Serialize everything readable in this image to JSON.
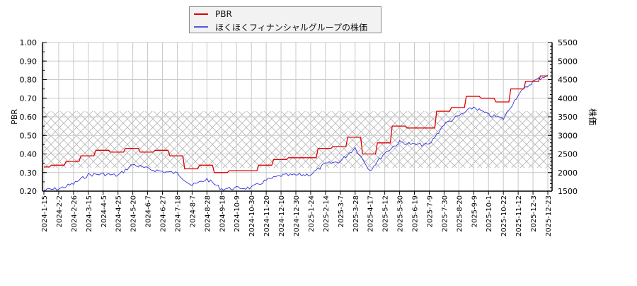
{
  "colors": {
    "pbr": "#dd0000",
    "price": "#3333dd",
    "grid": "#c8c8c8",
    "hatch": "#b4b4b4"
  },
  "legend": {
    "items": [
      {
        "label": "PBR",
        "color": "#dd0000"
      },
      {
        "label": "ほくほくフィナンシャルグループの株価",
        "color": "#5555ee"
      }
    ]
  },
  "axes": {
    "left_label": "PBR",
    "right_label": "株価",
    "left_ticks": [
      "1.00",
      "0.90",
      "0.80",
      "0.70",
      "0.60",
      "0.50",
      "0.40",
      "0.30",
      "0.20"
    ],
    "right_ticks": [
      "5500",
      "5000",
      "4500",
      "4000",
      "3500",
      "3000",
      "2500",
      "2000",
      "1500"
    ],
    "x_ticks": [
      "2024-1-15",
      "2024-2-2",
      "2024-2-26",
      "2024-3-15",
      "2024-4-5",
      "2024-4-25",
      "2024-5-20",
      "2024-6-7",
      "2024-6-27",
      "2024-7-18",
      "2024-8-7",
      "2024-8-28",
      "2024-9-18",
      "2024-10-9",
      "2024-10-30",
      "2024-11-20",
      "2024-12-10",
      "2024-12-30",
      "2025-1-24",
      "2025-2-14",
      "2025-3-7",
      "2025-3-28",
      "2025-4-17",
      "2025-5-12",
      "2025-5-30",
      "2025-6-19",
      "2025-7-9",
      "2025-7-30",
      "2025-8-20",
      "2025-9-9",
      "2025-10-1",
      "2025-10-22",
      "2025-11-12",
      "2025-12-3",
      "2025-12-23"
    ]
  },
  "chart_data": {
    "type": "line",
    "title": "",
    "xlabel": "",
    "ylabel": "PBR",
    "y2label": "株価",
    "ylim": [
      0.2,
      1.0
    ],
    "y2lim": [
      1500,
      5500
    ],
    "grid": true,
    "legend_position": "top-center",
    "shaded_band": {
      "axis": "PBR",
      "from": 0.325,
      "to": 0.63,
      "style": "cross-hatch"
    },
    "x": [
      "2024-1-15",
      "2024-2-2",
      "2024-2-26",
      "2024-3-15",
      "2024-4-5",
      "2024-4-25",
      "2024-5-20",
      "2024-6-7",
      "2024-6-27",
      "2024-7-18",
      "2024-8-7",
      "2024-8-28",
      "2024-9-18",
      "2024-10-9",
      "2024-10-30",
      "2024-11-20",
      "2024-12-10",
      "2024-12-30",
      "2025-1-24",
      "2025-2-14",
      "2025-3-7",
      "2025-3-28",
      "2025-4-17",
      "2025-5-12",
      "2025-5-30",
      "2025-6-19",
      "2025-7-9",
      "2025-7-30",
      "2025-8-20",
      "2025-9-9",
      "2025-10-1",
      "2025-10-22",
      "2025-11-12",
      "2025-12-3",
      "2025-12-23"
    ],
    "series": [
      {
        "name": "PBR",
        "axis": "left",
        "values": [
          0.33,
          0.34,
          0.36,
          0.39,
          0.42,
          0.41,
          0.43,
          0.41,
          0.42,
          0.39,
          0.32,
          0.34,
          0.3,
          0.31,
          0.31,
          0.34,
          0.37,
          0.38,
          0.38,
          0.43,
          0.44,
          0.49,
          0.4,
          0.46,
          0.55,
          0.54,
          0.54,
          0.63,
          0.65,
          0.71,
          0.7,
          0.68,
          0.75,
          0.79,
          0.82
        ]
      },
      {
        "name": "ほくほくフィナンシャルグループの株価",
        "axis": "right",
        "values": [
          1530,
          1560,
          1700,
          1940,
          1960,
          1920,
          2220,
          2100,
          2030,
          1980,
          1650,
          1820,
          1560,
          1580,
          1590,
          1790,
          1920,
          1930,
          1950,
          2230,
          2300,
          2670,
          2060,
          2530,
          2820,
          2750,
          2750,
          3300,
          3520,
          3760,
          3550,
          3450,
          4100,
          4450,
          4630
        ]
      }
    ]
  }
}
